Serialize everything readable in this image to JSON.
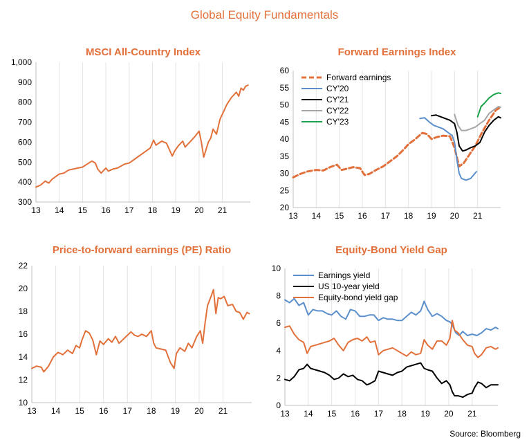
{
  "page": {
    "title": "Global Equity Fundamentals",
    "source": "Source: Bloomberg"
  },
  "colors": {
    "orange": "#E2703A",
    "blue": "#5B8FCC",
    "black": "#000000",
    "gray": "#A6A6A6",
    "green": "#1AA34A",
    "grid": "#E4E4E4"
  },
  "chart_data": [
    {
      "id": "msci",
      "type": "line",
      "title": "MSCI All-Country Index",
      "xlabel": "",
      "ylabel": "",
      "xlim": [
        2013,
        2022.2
      ],
      "ylim": [
        300,
        1000
      ],
      "yticks": [
        300,
        400,
        500,
        600,
        700,
        800,
        900,
        1000
      ],
      "ytick_labels": [
        "300",
        "400",
        "500",
        "600",
        "700",
        "800",
        "900",
        "1,000"
      ],
      "xticks": [
        2013,
        2014,
        2015,
        2016,
        2017,
        2018,
        2019,
        2020,
        2021
      ],
      "xtick_labels": [
        "13",
        "14",
        "15",
        "16",
        "17",
        "18",
        "19",
        "20",
        "21"
      ],
      "grid": "vertical",
      "legend": "none",
      "series": [
        {
          "name": "MSCI All-Country Index",
          "color": "#E2703A",
          "width": 2,
          "x": [
            2013.0,
            2013.2,
            2013.4,
            2013.55,
            2013.7,
            2014.0,
            2014.2,
            2014.4,
            2014.6,
            2014.8,
            2015.0,
            2015.2,
            2015.4,
            2015.55,
            2015.65,
            2015.8,
            2016.0,
            2016.1,
            2016.3,
            2016.5,
            2016.8,
            2017.0,
            2017.3,
            2017.6,
            2017.9,
            2018.05,
            2018.15,
            2018.4,
            2018.6,
            2018.85,
            2018.95,
            2019.1,
            2019.3,
            2019.4,
            2019.6,
            2019.8,
            2020.0,
            2020.1,
            2020.2,
            2020.4,
            2020.5,
            2020.6,
            2020.75,
            2020.9,
            2021.0,
            2021.2,
            2021.4,
            2021.6,
            2021.7,
            2021.8,
            2021.9,
            2022.0,
            2022.1
          ],
          "y": [
            375,
            385,
            405,
            395,
            415,
            440,
            445,
            460,
            465,
            470,
            475,
            490,
            505,
            495,
            465,
            445,
            470,
            455,
            465,
            470,
            490,
            495,
            520,
            545,
            570,
            610,
            585,
            605,
            595,
            530,
            555,
            580,
            605,
            575,
            600,
            625,
            655,
            600,
            525,
            600,
            620,
            665,
            640,
            715,
            740,
            790,
            825,
            850,
            830,
            870,
            860,
            880,
            885
          ]
        }
      ]
    },
    {
      "id": "fwd",
      "type": "line",
      "title": "Forward Earnings Index",
      "xlabel": "",
      "ylabel": "",
      "xlim": [
        2013,
        2022.0
      ],
      "ylim": [
        20,
        60
      ],
      "yticks": [
        20,
        25,
        30,
        35,
        40,
        45,
        50,
        55,
        60
      ],
      "ytick_labels": [
        "20",
        "25",
        "30",
        "35",
        "40",
        "45",
        "50",
        "55",
        "60"
      ],
      "xticks": [
        2013,
        2014,
        2015,
        2016,
        2017,
        2018,
        2019,
        2020,
        2021
      ],
      "xtick_labels": [
        "13",
        "14",
        "15",
        "16",
        "17",
        "18",
        "19",
        "20",
        "21"
      ],
      "grid": "vertical",
      "legend": "top-left",
      "series": [
        {
          "name": "Forward earnings",
          "color": "#E2703A",
          "width": 3,
          "dash": "7,4",
          "x": [
            2013.0,
            2013.3,
            2013.6,
            2014.0,
            2014.3,
            2014.6,
            2014.9,
            2015.1,
            2015.3,
            2015.6,
            2015.9,
            2016.1,
            2016.3,
            2016.6,
            2016.9,
            2017.2,
            2017.5,
            2017.8,
            2018.0,
            2018.3,
            2018.6,
            2018.8,
            2019.0,
            2019.2,
            2019.5,
            2019.8,
            2020.0,
            2020.2,
            2020.4,
            2020.6,
            2020.9,
            2021.2,
            2021.5,
            2021.8,
            2022.0
          ],
          "y": [
            28.8,
            29.8,
            30.5,
            31,
            30.8,
            31.8,
            32.5,
            31,
            31.3,
            31.8,
            31.5,
            29.5,
            29.8,
            31,
            32,
            33.5,
            35,
            37,
            38.5,
            40,
            41.8,
            41.5,
            40,
            40.5,
            41,
            40.8,
            37.5,
            32,
            33,
            35,
            38,
            42,
            45.5,
            48.5,
            49.3
          ]
        },
        {
          "name": "CY'20",
          "color": "#5B8FCC",
          "width": 2,
          "x": [
            2018.5,
            2018.7,
            2018.9,
            2019.1,
            2019.3,
            2019.5,
            2019.7,
            2019.9,
            2020.0,
            2020.1,
            2020.2,
            2020.3,
            2020.5,
            2020.7,
            2020.95
          ],
          "y": [
            46,
            46.2,
            45,
            44,
            43.5,
            43,
            42,
            41,
            39,
            34,
            30,
            28.5,
            28,
            28.5,
            30.5
          ]
        },
        {
          "name": "CY'21",
          "color": "#000000",
          "width": 2,
          "x": [
            2019.0,
            2019.2,
            2019.4,
            2019.6,
            2019.8,
            2020.0,
            2020.1,
            2020.2,
            2020.35,
            2020.5,
            2020.7,
            2020.9,
            2021.1,
            2021.3,
            2021.5,
            2021.7,
            2021.9,
            2022.0
          ],
          "y": [
            46.8,
            47,
            46.5,
            46,
            45.5,
            44.5,
            42,
            38,
            36.5,
            36.8,
            37.5,
            38,
            39,
            42,
            44,
            45.5,
            46.5,
            46.2
          ]
        },
        {
          "name": "CY'22",
          "color": "#A6A6A6",
          "width": 2,
          "x": [
            2020.0,
            2020.15,
            2020.3,
            2020.5,
            2020.7,
            2020.9,
            2021.1,
            2021.3,
            2021.5,
            2021.7,
            2021.9,
            2022.0
          ],
          "y": [
            47.2,
            44,
            42.5,
            42.5,
            43,
            43.5,
            44.5,
            45.5,
            47.5,
            48.5,
            49.5,
            49.3
          ]
        },
        {
          "name": "CY'23",
          "color": "#1AA34A",
          "width": 2,
          "x": [
            2021.0,
            2021.15,
            2021.3,
            2021.5,
            2021.7,
            2021.9,
            2022.0
          ],
          "y": [
            46.5,
            49.5,
            50.5,
            52,
            53,
            53.5,
            53.3
          ]
        }
      ]
    },
    {
      "id": "pe",
      "type": "line",
      "title": "Price-to-forward earnings (PE) Ratio",
      "xlabel": "",
      "ylabel": "",
      "xlim": [
        2013,
        2022.2
      ],
      "ylim": [
        10,
        22
      ],
      "yticks": [
        10,
        12,
        14,
        16,
        18,
        20,
        22
      ],
      "ytick_labels": [
        "10",
        "12",
        "14",
        "16",
        "18",
        "20",
        "22"
      ],
      "xticks": [
        2013,
        2014,
        2015,
        2016,
        2017,
        2018,
        2019,
        2020,
        2021
      ],
      "xtick_labels": [
        "13",
        "14",
        "15",
        "16",
        "17",
        "18",
        "19",
        "20",
        "21"
      ],
      "grid": "vertical",
      "legend": "none",
      "series": [
        {
          "name": "PE Ratio",
          "color": "#E2703A",
          "width": 2,
          "x": [
            2013.0,
            2013.2,
            2013.4,
            2013.5,
            2013.7,
            2013.9,
            2014.1,
            2014.3,
            2014.5,
            2014.7,
            2014.85,
            2015.0,
            2015.1,
            2015.25,
            2015.4,
            2015.55,
            2015.7,
            2015.85,
            2016.0,
            2016.2,
            2016.35,
            2016.5,
            2016.65,
            2016.8,
            2017.0,
            2017.15,
            2017.3,
            2017.45,
            2017.6,
            2017.8,
            2018.0,
            2018.1,
            2018.2,
            2018.4,
            2018.6,
            2018.8,
            2018.95,
            2019.05,
            2019.2,
            2019.4,
            2019.55,
            2019.7,
            2019.9,
            2020.05,
            2020.15,
            2020.25,
            2020.35,
            2020.5,
            2020.6,
            2020.7,
            2020.8,
            2020.9,
            2021.05,
            2021.2,
            2021.4,
            2021.55,
            2021.7,
            2021.85,
            2022.0,
            2022.1
          ],
          "y": [
            13,
            13.2,
            13.1,
            12.7,
            13.2,
            14,
            14.4,
            14.2,
            14.6,
            14.3,
            15,
            14.8,
            15.5,
            16.3,
            16.1,
            15.5,
            14.2,
            15.4,
            15.1,
            15.6,
            15.3,
            15.8,
            15.2,
            15.5,
            15.9,
            16.2,
            15.9,
            15.8,
            16,
            15.8,
            16.3,
            15.2,
            14.8,
            14.7,
            14.6,
            13.5,
            13,
            14.3,
            14.8,
            14.5,
            15.2,
            14.8,
            15.8,
            16.3,
            15.2,
            17,
            18.5,
            19.3,
            19.9,
            17.8,
            19.2,
            19.1,
            19.3,
            18.5,
            18.6,
            18,
            17.9,
            17.3,
            17.9,
            17.8
          ]
        }
      ]
    },
    {
      "id": "gap",
      "type": "line",
      "title": "Equity-Bond Yield Gap",
      "xlabel": "",
      "ylabel": "",
      "xlim": [
        2013,
        2022.1
      ],
      "ylim": [
        0,
        10
      ],
      "yticks": [
        0,
        2,
        4,
        6,
        8,
        10
      ],
      "ytick_labels": [
        "0",
        "2",
        "4",
        "6",
        "8",
        "10"
      ],
      "xticks": [
        2013,
        2014,
        2015,
        2016,
        2017,
        2018,
        2019,
        2020,
        2021
      ],
      "xtick_labels": [
        "13",
        "14",
        "15",
        "16",
        "17",
        "18",
        "19",
        "20",
        "21"
      ],
      "grid": "vertical",
      "legend": "top-left",
      "series": [
        {
          "name": "Earnings yield",
          "color": "#5B8FCC",
          "width": 2,
          "x": [
            2013.0,
            2013.2,
            2013.4,
            2013.6,
            2013.8,
            2014.0,
            2014.2,
            2014.4,
            2014.6,
            2014.8,
            2015.0,
            2015.2,
            2015.4,
            2015.6,
            2015.8,
            2016.0,
            2016.2,
            2016.4,
            2016.6,
            2016.8,
            2017.0,
            2017.2,
            2017.4,
            2017.6,
            2017.8,
            2018.0,
            2018.2,
            2018.4,
            2018.6,
            2018.8,
            2018.95,
            2019.1,
            2019.3,
            2019.5,
            2019.7,
            2019.9,
            2020.05,
            2020.15,
            2020.3,
            2020.45,
            2020.6,
            2020.8,
            2021.0,
            2021.2,
            2021.4,
            2021.6,
            2021.8,
            2022.0,
            2022.1
          ],
          "y": [
            7.7,
            7.5,
            7.8,
            7.3,
            7.5,
            6.6,
            7,
            6.9,
            6.9,
            6.7,
            6.6,
            6.9,
            6.5,
            6.3,
            7,
            6.9,
            6.5,
            6.5,
            6.6,
            6.6,
            6.2,
            6.4,
            6.3,
            6.3,
            6.2,
            6.2,
            6.5,
            6.8,
            6.6,
            6.9,
            7.6,
            7,
            6.5,
            6.7,
            6.5,
            6.2,
            6.1,
            5.9,
            5.3,
            5.1,
            5.4,
            5.1,
            5.2,
            5.1,
            5.3,
            5.6,
            5.5,
            5.7,
            5.6
          ]
        },
        {
          "name": "US 10-year yield",
          "color": "#000000",
          "width": 2,
          "x": [
            2013.0,
            2013.2,
            2013.4,
            2013.6,
            2013.8,
            2013.95,
            2014.1,
            2014.3,
            2014.5,
            2014.7,
            2014.9,
            2015.1,
            2015.3,
            2015.5,
            2015.7,
            2015.9,
            2016.1,
            2016.3,
            2016.5,
            2016.65,
            2016.85,
            2017.0,
            2017.2,
            2017.4,
            2017.6,
            2017.8,
            2018.0,
            2018.2,
            2018.4,
            2018.6,
            2018.8,
            2018.95,
            2019.1,
            2019.3,
            2019.5,
            2019.7,
            2019.9,
            2020.05,
            2020.15,
            2020.25,
            2020.4,
            2020.6,
            2020.8,
            2021.0,
            2021.1,
            2021.25,
            2021.4,
            2021.6,
            2021.8,
            2022.0,
            2022.1
          ],
          "y": [
            1.9,
            1.8,
            2.1,
            2.6,
            2.7,
            3.0,
            2.7,
            2.6,
            2.5,
            2.4,
            2.2,
            1.9,
            2.0,
            2.3,
            2.1,
            2.2,
            1.9,
            1.8,
            1.5,
            1.6,
            1.8,
            2.5,
            2.4,
            2.3,
            2.2,
            2.4,
            2.5,
            2.8,
            2.9,
            3.0,
            3.1,
            2.7,
            2.6,
            2.5,
            2.0,
            1.6,
            1.8,
            1.5,
            1.0,
            0.7,
            0.7,
            0.6,
            0.8,
            0.9,
            1.3,
            1.7,
            1.6,
            1.3,
            1.5,
            1.5,
            1.5
          ]
        },
        {
          "name": "Equity-bond yield gap",
          "color": "#E2703A",
          "width": 2,
          "x": [
            2013.0,
            2013.2,
            2013.4,
            2013.6,
            2013.8,
            2013.95,
            2014.1,
            2014.3,
            2014.5,
            2014.7,
            2014.9,
            2015.1,
            2015.3,
            2015.5,
            2015.7,
            2015.9,
            2016.1,
            2016.3,
            2016.5,
            2016.65,
            2016.85,
            2017.0,
            2017.2,
            2017.4,
            2017.6,
            2017.8,
            2018.0,
            2018.2,
            2018.4,
            2018.6,
            2018.8,
            2018.95,
            2019.1,
            2019.3,
            2019.5,
            2019.7,
            2019.9,
            2020.05,
            2020.15,
            2020.25,
            2020.4,
            2020.6,
            2020.8,
            2021.0,
            2021.1,
            2021.25,
            2021.4,
            2021.6,
            2021.8,
            2022.0,
            2022.1
          ],
          "y": [
            5.7,
            5.8,
            5.2,
            4.8,
            4.6,
            3.8,
            4.3,
            4.4,
            4.5,
            4.6,
            4.7,
            4.9,
            4.4,
            4.0,
            4.6,
            4.8,
            4.9,
            4.7,
            5.0,
            4.6,
            4.7,
            3.7,
            4.0,
            4.1,
            4.2,
            4.0,
            3.8,
            3.6,
            3.9,
            3.7,
            3.8,
            4.8,
            4.4,
            4.1,
            4.7,
            4.7,
            4.4,
            4.9,
            6.2,
            5.5,
            5.3,
            4.8,
            4.4,
            4.3,
            3.8,
            3.5,
            3.7,
            4.2,
            4.3,
            4.1,
            4.2
          ]
        }
      ]
    }
  ]
}
